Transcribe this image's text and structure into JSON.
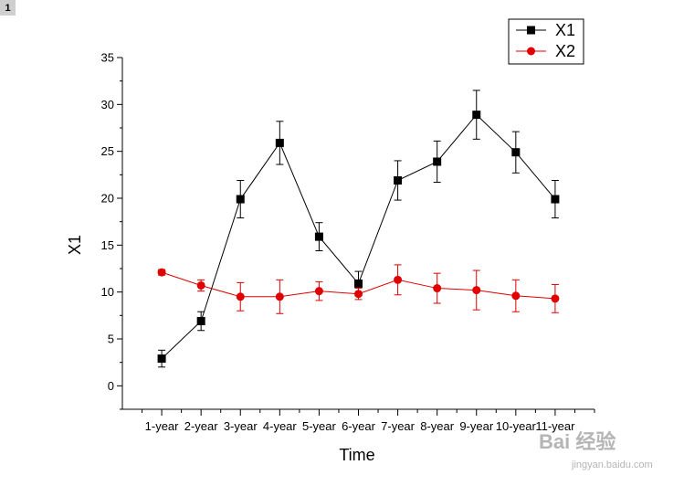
{
  "page": {
    "badge": "1"
  },
  "chart_data": {
    "type": "line",
    "title": "",
    "xlabel": "Time",
    "ylabel": "X1",
    "categories": [
      "1-year",
      "2-year",
      "3-year",
      "4-year",
      "5-year",
      "6-year",
      "7-year",
      "8-year",
      "9-year",
      "10-year",
      "11-year"
    ],
    "ylim": [
      -2.5,
      35
    ],
    "yticks": [
      0,
      5,
      10,
      15,
      20,
      25,
      30,
      35
    ],
    "legend_position": "top-right",
    "grid": false,
    "series": [
      {
        "name": "X1",
        "color": "#000000",
        "marker": "square",
        "values": [
          2.9,
          6.9,
          19.9,
          25.9,
          15.9,
          10.9,
          21.9,
          23.9,
          28.9,
          24.9,
          19.9
        ],
        "errors": [
          0.9,
          1.0,
          2.0,
          2.3,
          1.5,
          1.3,
          2.1,
          2.2,
          2.6,
          2.2,
          2.0
        ]
      },
      {
        "name": "X2",
        "color": "#e00000",
        "marker": "circle",
        "values": [
          12.1,
          10.7,
          9.5,
          9.5,
          10.1,
          9.8,
          11.3,
          10.4,
          10.2,
          9.6,
          9.3
        ],
        "errors": [
          0.3,
          0.6,
          1.5,
          1.8,
          1.0,
          0.6,
          1.6,
          1.6,
          2.1,
          1.7,
          1.5
        ]
      }
    ]
  },
  "watermark": {
    "text": "Bai 经验",
    "url": "jingyan.baidu.com"
  }
}
